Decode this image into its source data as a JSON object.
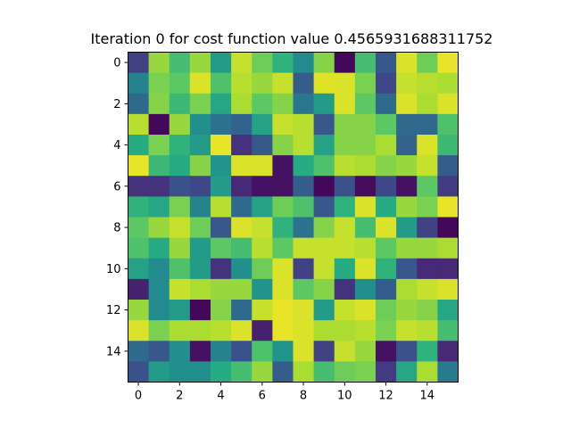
{
  "chart_data": {
    "type": "heatmap",
    "title": "Iteration 0 for cost function value 0.4565931688311752",
    "xlabel": "",
    "ylabel": "",
    "colormap": "viridis",
    "value_range": [
      0,
      1
    ],
    "x_ticks": [
      0,
      2,
      4,
      6,
      8,
      10,
      12,
      14
    ],
    "y_ticks": [
      0,
      2,
      4,
      6,
      8,
      10,
      12,
      14
    ],
    "xlim": [
      -0.5,
      15.5
    ],
    "ylim": [
      15.5,
      -0.5
    ],
    "grid": false,
    "values": [
      [
        0.2,
        0.85,
        0.7,
        0.85,
        0.55,
        0.92,
        0.78,
        0.65,
        0.48,
        0.82,
        0.02,
        0.7,
        0.28,
        0.95,
        0.78,
        0.97
      ],
      [
        0.45,
        0.8,
        0.75,
        0.95,
        0.72,
        0.9,
        0.85,
        0.92,
        0.3,
        0.96,
        0.95,
        0.8,
        0.22,
        0.92,
        0.9,
        0.88
      ],
      [
        0.35,
        0.82,
        0.68,
        0.8,
        0.6,
        0.88,
        0.75,
        0.82,
        0.4,
        0.55,
        0.95,
        0.75,
        0.35,
        0.95,
        0.88,
        0.95
      ],
      [
        0.9,
        0.02,
        0.85,
        0.5,
        0.38,
        0.32,
        0.58,
        0.92,
        0.9,
        0.28,
        0.82,
        0.82,
        0.75,
        0.35,
        0.35,
        0.72
      ],
      [
        0.62,
        0.8,
        0.65,
        0.55,
        0.97,
        0.15,
        0.28,
        0.82,
        0.9,
        0.58,
        0.82,
        0.82,
        0.88,
        0.32,
        0.95,
        0.68
      ],
      [
        0.97,
        0.68,
        0.62,
        0.82,
        0.52,
        0.95,
        0.95,
        0.05,
        0.62,
        0.72,
        0.9,
        0.88,
        0.82,
        0.85,
        0.92,
        0.3
      ],
      [
        0.15,
        0.15,
        0.25,
        0.22,
        0.55,
        0.12,
        0.05,
        0.05,
        0.3,
        0.02,
        0.25,
        0.03,
        0.22,
        0.05,
        0.75,
        0.18
      ],
      [
        0.65,
        0.6,
        0.8,
        0.45,
        0.9,
        0.35,
        0.58,
        0.78,
        0.72,
        0.28,
        0.65,
        0.95,
        0.62,
        0.85,
        0.8,
        0.97
      ],
      [
        0.75,
        0.85,
        0.92,
        0.78,
        0.28,
        0.95,
        0.92,
        0.65,
        0.38,
        0.82,
        0.92,
        0.7,
        0.95,
        0.55,
        0.2,
        0.02
      ],
      [
        0.72,
        0.62,
        0.85,
        0.55,
        0.75,
        0.7,
        0.9,
        0.75,
        0.92,
        0.92,
        0.92,
        0.9,
        0.75,
        0.85,
        0.85,
        0.88
      ],
      [
        0.58,
        0.48,
        0.72,
        0.55,
        0.15,
        0.5,
        0.78,
        0.95,
        0.2,
        0.92,
        0.62,
        0.95,
        0.65,
        0.28,
        0.12,
        0.12
      ],
      [
        0.1,
        0.48,
        0.92,
        0.88,
        0.85,
        0.85,
        0.52,
        0.95,
        0.75,
        0.82,
        0.15,
        0.5,
        0.3,
        0.88,
        0.92,
        0.95
      ],
      [
        0.85,
        0.48,
        0.55,
        0.02,
        0.82,
        0.35,
        0.92,
        0.97,
        0.95,
        0.55,
        0.92,
        0.95,
        0.78,
        0.85,
        0.82,
        0.6
      ],
      [
        0.95,
        0.8,
        0.88,
        0.88,
        0.9,
        0.95,
        0.1,
        0.97,
        0.95,
        0.88,
        0.88,
        0.9,
        0.8,
        0.92,
        0.9,
        0.7
      ],
      [
        0.35,
        0.28,
        0.5,
        0.05,
        0.45,
        0.25,
        0.72,
        0.52,
        0.95,
        0.2,
        0.92,
        0.85,
        0.05,
        0.25,
        0.65,
        0.12
      ],
      [
        0.25,
        0.55,
        0.5,
        0.5,
        0.62,
        0.7,
        0.85,
        0.3,
        0.88,
        0.7,
        0.78,
        0.8,
        0.18,
        0.6,
        0.88,
        0.42
      ]
    ]
  }
}
